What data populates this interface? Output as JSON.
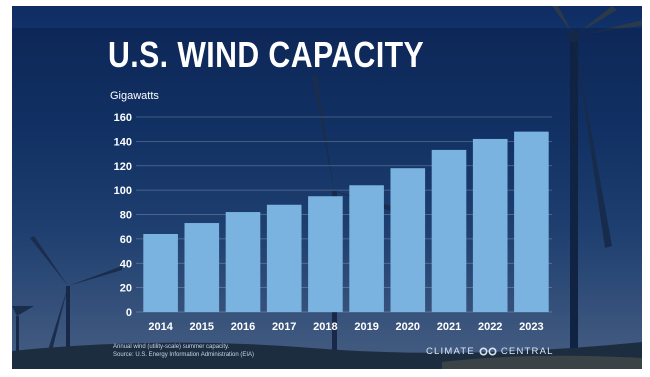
{
  "title": "U.S. WIND CAPACITY",
  "footnote": {
    "line1": "Annual wind (utility-scale) summer capacity.",
    "line2": "Source: U.S. Energy Information Administration (EIA)"
  },
  "logo": {
    "left": "CLIMATE",
    "right": "CENTRAL",
    "icon": "infinity-icon"
  },
  "colors": {
    "bar": "#7ab3e0",
    "text": "#ffffff",
    "panel": "#0c224e"
  },
  "chart_data": {
    "type": "bar",
    "title": "U.S. WIND CAPACITY",
    "ylabel": "Gigawatts",
    "xlabel": "",
    "categories": [
      "2014",
      "2015",
      "2016",
      "2017",
      "2018",
      "2019",
      "2020",
      "2021",
      "2022",
      "2023"
    ],
    "values": [
      64,
      73,
      82,
      88,
      95,
      104,
      118,
      133,
      142,
      148
    ],
    "ylim": [
      0,
      160
    ],
    "yticks": [
      0,
      20,
      40,
      60,
      80,
      100,
      120,
      140,
      160
    ],
    "grid": true,
    "legend": "none"
  }
}
